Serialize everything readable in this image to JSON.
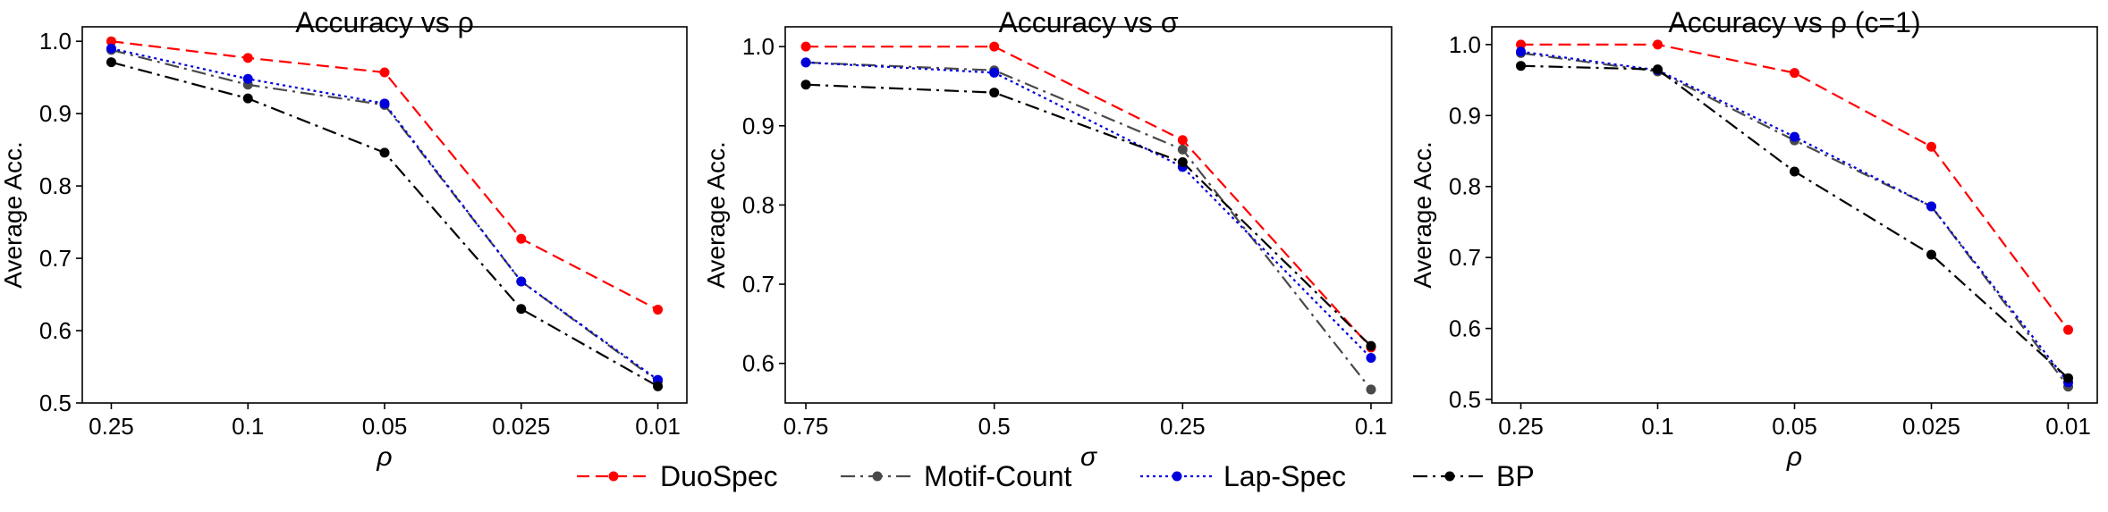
{
  "chart_data": [
    {
      "type": "line",
      "title": "Accuracy vs ρ",
      "xlabel": "ρ",
      "ylabel": "Average Acc.",
      "categories": [
        "0.25",
        "0.1",
        "0.05",
        "0.025",
        "0.01"
      ],
      "ylim": [
        0.5,
        1.02
      ],
      "yticks": [
        "0.5",
        "0.6",
        "0.7",
        "0.8",
        "0.9",
        "1.0"
      ],
      "ytick_values": [
        0.5,
        0.6,
        0.7,
        0.8,
        0.9,
        1.0
      ],
      "grid": false,
      "series": [
        {
          "name": "DuoSpec",
          "values": [
            1.0,
            0.977,
            0.957,
            0.727,
            0.629
          ]
        },
        {
          "name": "Motif-Count",
          "values": [
            0.988,
            0.94,
            0.912,
            0.668,
            0.53
          ]
        },
        {
          "name": "Lap-Spec",
          "values": [
            0.99,
            0.948,
            0.914,
            0.668,
            0.532
          ]
        },
        {
          "name": "BP",
          "values": [
            0.971,
            0.921,
            0.846,
            0.63,
            0.523
          ]
        }
      ]
    },
    {
      "type": "line",
      "title": "Accuracy vs σ",
      "xlabel": "σ",
      "ylabel": "Average Acc.",
      "categories": [
        "0.75",
        "0.5",
        "0.25",
        "0.1"
      ],
      "ylim": [
        0.55,
        1.025
      ],
      "yticks": [
        "0.6",
        "0.7",
        "0.8",
        "0.9",
        "1.0"
      ],
      "ytick_values": [
        0.6,
        0.7,
        0.8,
        0.9,
        1.0
      ],
      "grid": false,
      "series": [
        {
          "name": "DuoSpec",
          "values": [
            1.0,
            1.0,
            0.882,
            0.62
          ]
        },
        {
          "name": "Motif-Count",
          "values": [
            0.98,
            0.97,
            0.87,
            0.567
          ]
        },
        {
          "name": "Lap-Spec",
          "values": [
            0.98,
            0.967,
            0.848,
            0.607
          ]
        },
        {
          "name": "BP",
          "values": [
            0.952,
            0.942,
            0.854,
            0.622
          ]
        }
      ]
    },
    {
      "type": "line",
      "title": "Accuracy vs ρ (c=1)",
      "xlabel": "ρ",
      "ylabel": "Average Acc.",
      "categories": [
        "0.25",
        "0.1",
        "0.05",
        "0.025",
        "0.01"
      ],
      "ylim": [
        0.495,
        1.025
      ],
      "yticks": [
        "0.5",
        "0.6",
        "0.7",
        "0.8",
        "0.9",
        "1.0"
      ],
      "ytick_values": [
        0.5,
        0.6,
        0.7,
        0.8,
        0.9,
        1.0
      ],
      "grid": false,
      "series": [
        {
          "name": "DuoSpec",
          "values": [
            1.0,
            1.0,
            0.96,
            0.856,
            0.598
          ]
        },
        {
          "name": "Motif-Count",
          "values": [
            0.988,
            0.962,
            0.865,
            0.772,
            0.518
          ]
        },
        {
          "name": "Lap-Spec",
          "values": [
            0.99,
            0.964,
            0.87,
            0.772,
            0.524
          ]
        },
        {
          "name": "BP",
          "values": [
            0.97,
            0.965,
            0.821,
            0.704,
            0.53
          ]
        }
      ]
    }
  ],
  "legend": {
    "placement": "bottom-center",
    "entries": [
      "DuoSpec",
      "Motif-Count",
      "Lap-Spec",
      "BP"
    ]
  },
  "series_styles": {
    "DuoSpec": {
      "color": "#ff0000",
      "dash": "dashed"
    },
    "Motif-Count": {
      "color": "#4a4a4a",
      "dash": "dash-dot"
    },
    "Lap-Spec": {
      "color": "#0000dd",
      "dash": "dotted"
    },
    "BP": {
      "color": "#000000",
      "dash": "dash-dot"
    }
  }
}
